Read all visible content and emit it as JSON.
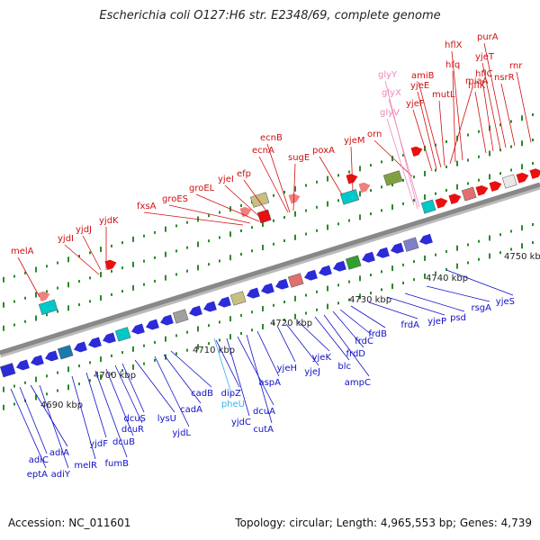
{
  "title": "Escherichia coli O127:H6 str. E2348/69, complete genome",
  "footer": {
    "accession": "Accession: NC_011601",
    "summary": "Topology: circular; Length: 4,965,553 bp; Genes: 4,739"
  },
  "colors": {
    "forward_label": "#d01010",
    "reverse_label": "#1010c8",
    "rna_label": "#ee88bb",
    "trna_label": "#33b5e5",
    "backbone": "#888888",
    "tick": "#2a8a2a"
  },
  "kbp_labels": [
    "4690 kbp",
    "4700 kbp",
    "4710 kbp",
    "4720 kbp",
    "4730 kbp",
    "4740 kbp",
    "4750 kbp"
  ],
  "forward_genes": [
    "melA",
    "yjdI",
    "yjdJ",
    "yjdK",
    "fxsA",
    "groES",
    "groEL",
    "yjeI",
    "efp",
    "ecnA",
    "ecnB",
    "sugE",
    "poxA",
    "yjeM",
    "orn",
    "yjeF",
    "yjeE",
    "amiB",
    "mutL",
    "miaA",
    "hfq",
    "hflX",
    "hflK",
    "hflC",
    "yjeT",
    "purA",
    "nsrR",
    "rnr"
  ],
  "rna_genes": [
    "glyY",
    "glyX",
    "glyV"
  ],
  "reverse_genes": [
    "eptA",
    "adiC",
    "adiA",
    "adiY",
    "melR",
    "yjdF",
    "fumB",
    "dcuB",
    "dcuR",
    "dcuS",
    "lysU",
    "yjdL",
    "cadA",
    "cadB",
    "dipZ",
    "yjdC",
    "dcuA",
    "cutA",
    "aspA",
    "yjeH",
    "yjeJ",
    "yjeK",
    "blc",
    "ampC",
    "frdD",
    "frdC",
    "frdB",
    "frdA",
    "yjeP",
    "psd",
    "rsgA",
    "yjeS"
  ],
  "trna_genes": [
    "pheU"
  ]
}
